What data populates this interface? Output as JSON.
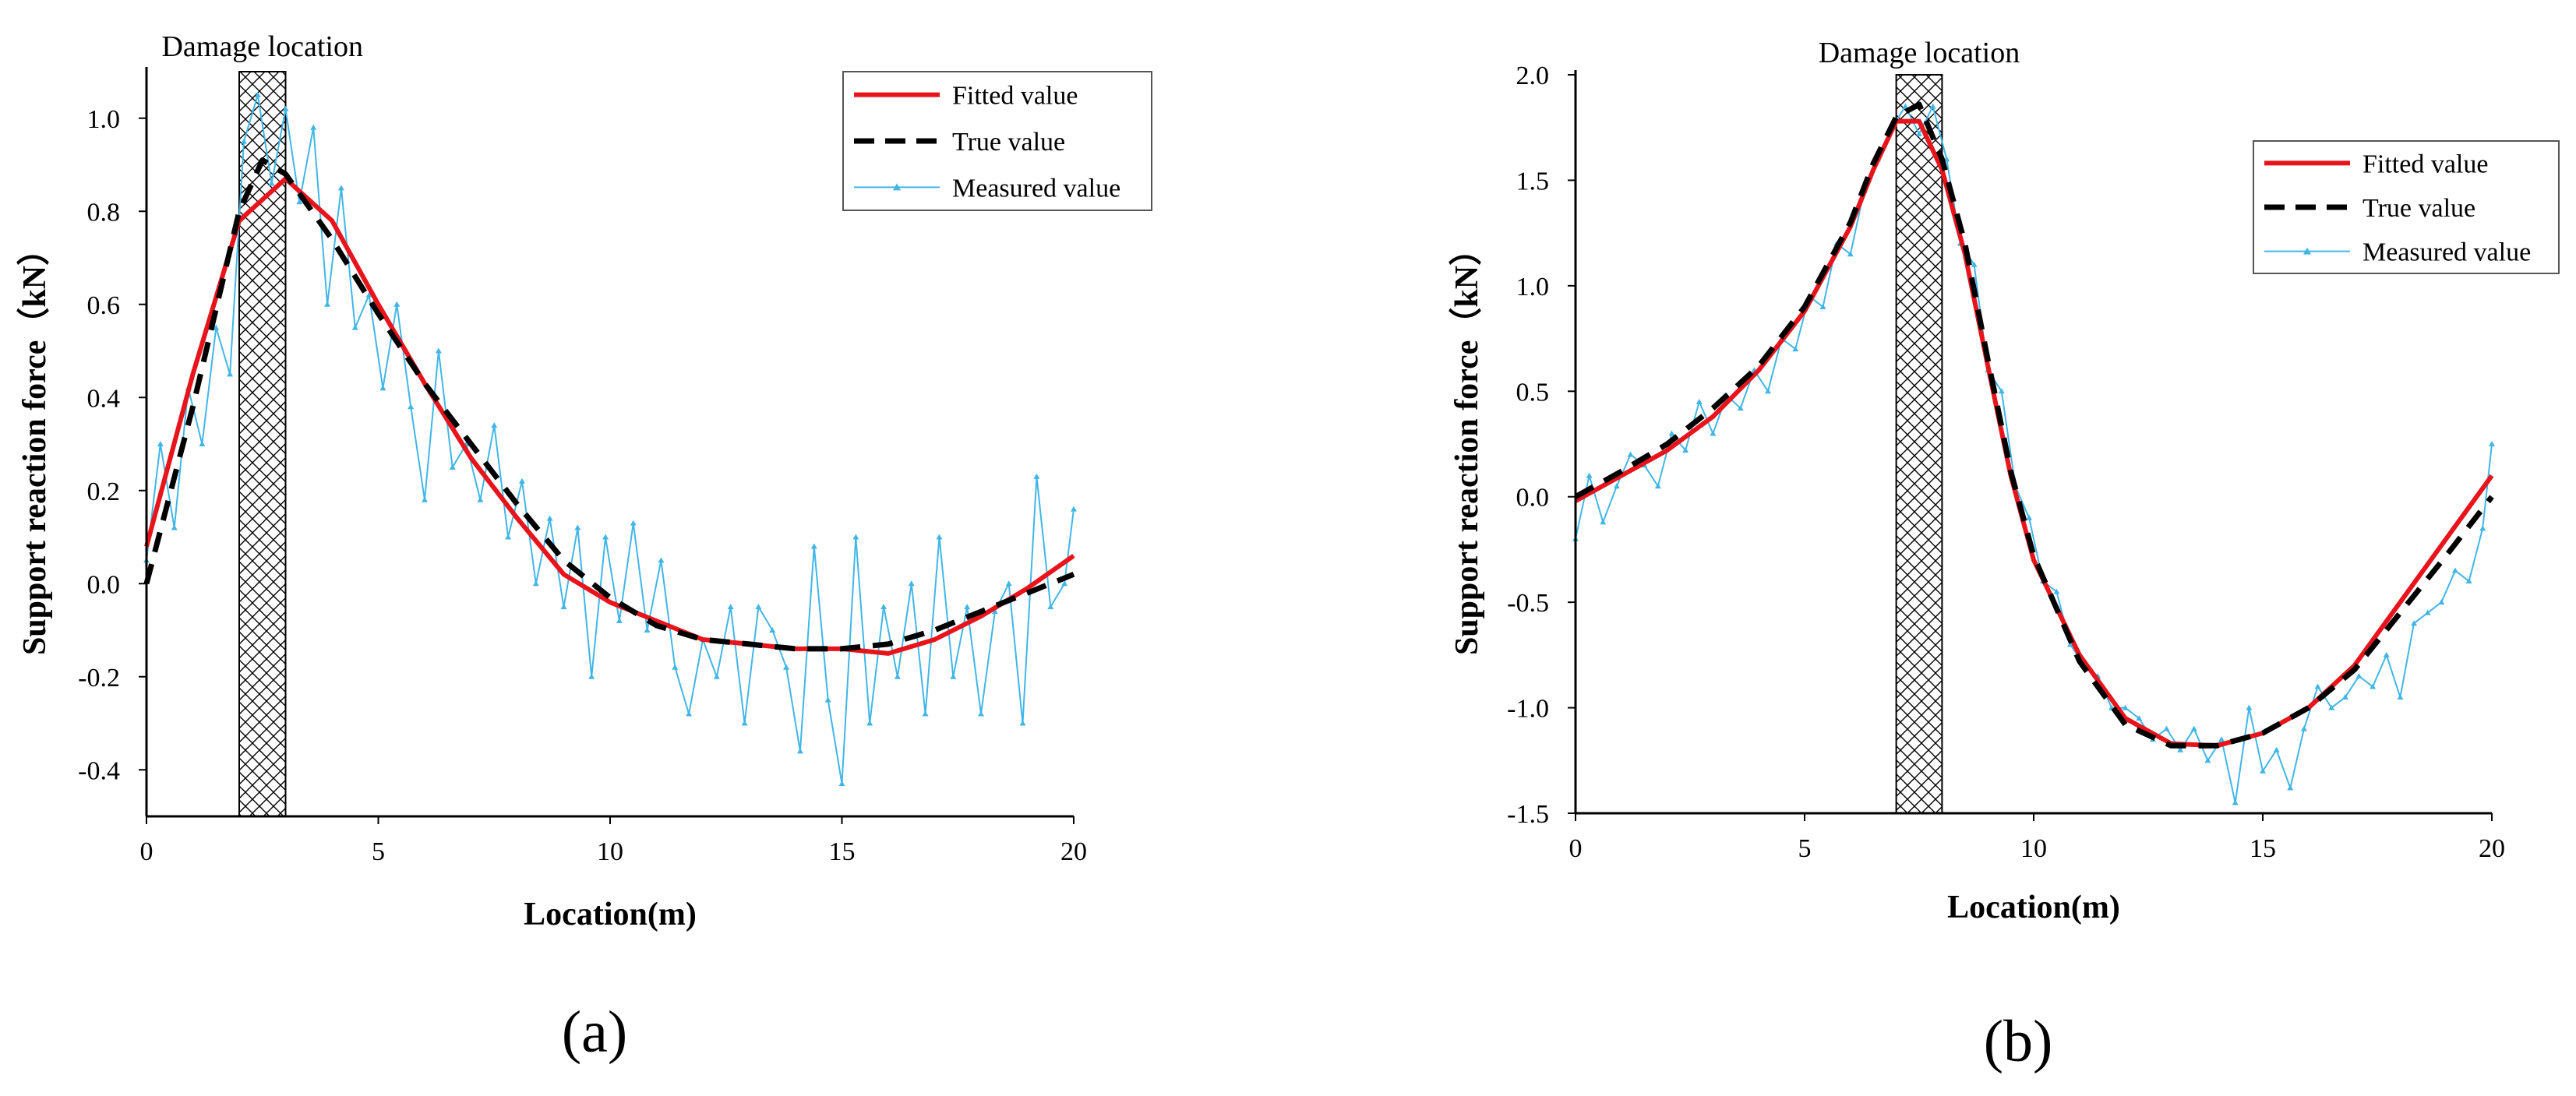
{
  "chart_data": [
    {
      "panel_label": "(a)",
      "type": "line",
      "xlabel": "Location(m)",
      "ylabel": "Support reaction force（kN）",
      "xlim": [
        0,
        20
      ],
      "ylim": [
        -0.5,
        1.1
      ],
      "xticks": [
        0,
        5,
        10,
        15,
        20
      ],
      "xtick_labels": [
        "0",
        "5",
        "10",
        "15",
        "20"
      ],
      "yticks": [
        -0.4,
        -0.2,
        0.0,
        0.2,
        0.4,
        0.6,
        0.8,
        1.0
      ],
      "ytick_labels": [
        "-0.4",
        "-0.2",
        "0.0",
        "0.2",
        "0.4",
        "0.6",
        "0.8",
        "1.0"
      ],
      "annotation": "Damage location",
      "damage_range": [
        2,
        3
      ],
      "legend_position": "top-right",
      "series": [
        {
          "name": "Fitted value",
          "style": "solid",
          "color": "#e8141b",
          "x": [
            0,
            1,
            2,
            3,
            4,
            5,
            6,
            7,
            8,
            9,
            10,
            11,
            12,
            13,
            14,
            15,
            16,
            17,
            18,
            19,
            20
          ],
          "y": [
            0.08,
            0.45,
            0.78,
            0.87,
            0.78,
            0.6,
            0.43,
            0.27,
            0.14,
            0.02,
            -0.04,
            -0.08,
            -0.12,
            -0.13,
            -0.14,
            -0.14,
            -0.15,
            -0.12,
            -0.07,
            -0.01,
            0.06
          ]
        },
        {
          "name": "True value",
          "style": "dashed",
          "color": "#000000",
          "x": [
            0,
            1,
            2,
            2.5,
            3,
            4,
            5,
            6,
            7,
            8,
            9,
            10,
            11,
            12,
            13,
            14,
            15,
            16,
            17,
            18,
            19,
            20
          ],
          "y": [
            0.0,
            0.38,
            0.8,
            0.91,
            0.88,
            0.74,
            0.58,
            0.43,
            0.3,
            0.17,
            0.05,
            -0.03,
            -0.09,
            -0.12,
            -0.13,
            -0.14,
            -0.14,
            -0.13,
            -0.1,
            -0.06,
            -0.02,
            0.02
          ]
        },
        {
          "name": "Measured value",
          "style": "marker",
          "color": "#41b6e6",
          "x": [
            0,
            0.3,
            0.6,
            0.9,
            1.2,
            1.5,
            1.8,
            2.1,
            2.4,
            2.7,
            3.0,
            3.3,
            3.6,
            3.9,
            4.2,
            4.5,
            4.8,
            5.1,
            5.4,
            5.7,
            6.0,
            6.3,
            6.6,
            6.9,
            7.2,
            7.5,
            7.8,
            8.1,
            8.4,
            8.7,
            9.0,
            9.3,
            9.6,
            9.9,
            10.2,
            10.5,
            10.8,
            11.1,
            11.4,
            11.7,
            12.0,
            12.3,
            12.6,
            12.9,
            13.2,
            13.5,
            13.8,
            14.1,
            14.4,
            14.7,
            15.0,
            15.3,
            15.6,
            15.9,
            16.2,
            16.5,
            16.8,
            17.1,
            17.4,
            17.7,
            18.0,
            18.3,
            18.6,
            18.9,
            19.2,
            19.5,
            19.8,
            20.0
          ],
          "y": [
            0.05,
            0.3,
            0.12,
            0.42,
            0.3,
            0.55,
            0.45,
            0.95,
            1.05,
            0.86,
            1.02,
            0.82,
            0.98,
            0.6,
            0.85,
            0.55,
            0.62,
            0.42,
            0.6,
            0.38,
            0.18,
            0.5,
            0.25,
            0.3,
            0.18,
            0.34,
            0.1,
            0.22,
            0.0,
            0.14,
            -0.05,
            0.12,
            -0.2,
            0.1,
            -0.08,
            0.13,
            -0.1,
            0.05,
            -0.18,
            -0.28,
            -0.12,
            -0.2,
            -0.05,
            -0.3,
            -0.05,
            -0.1,
            -0.18,
            -0.36,
            0.08,
            -0.25,
            -0.43,
            0.1,
            -0.3,
            -0.05,
            -0.2,
            0.0,
            -0.28,
            0.1,
            -0.2,
            -0.05,
            -0.28,
            -0.06,
            0.0,
            -0.3,
            0.23,
            -0.05,
            0.0,
            0.16
          ]
        }
      ]
    },
    {
      "panel_label": "(b)",
      "type": "line",
      "xlabel": "Location(m)",
      "ylabel": "Support reaction force（kN）",
      "xlim": [
        0,
        20
      ],
      "ylim": [
        -1.5,
        2.0
      ],
      "xticks": [
        0,
        5,
        10,
        15,
        20
      ],
      "xtick_labels": [
        "0",
        "5",
        "10",
        "15",
        "20"
      ],
      "yticks": [
        -1.5,
        -1.0,
        -0.5,
        0.0,
        0.5,
        1.0,
        1.5,
        2.0
      ],
      "ytick_labels": [
        "-1.5",
        "-1.0",
        "-0.5",
        "0.0",
        "0.5",
        "1.0",
        "1.5",
        "2.0"
      ],
      "annotation": "Damage location",
      "damage_range": [
        7,
        8
      ],
      "legend_position": "top-right",
      "series": [
        {
          "name": "Fitted value",
          "style": "solid",
          "color": "#e8141b",
          "x": [
            0,
            1,
            2,
            3,
            4,
            5,
            6,
            6.5,
            7,
            7.5,
            8,
            8.5,
            9,
            9.5,
            10,
            11,
            12,
            13,
            14,
            15,
            16,
            17,
            18,
            19,
            20
          ],
          "y": [
            -0.02,
            0.1,
            0.22,
            0.38,
            0.6,
            0.88,
            1.28,
            1.55,
            1.78,
            1.78,
            1.55,
            1.15,
            0.62,
            0.1,
            -0.3,
            -0.75,
            -1.05,
            -1.17,
            -1.18,
            -1.12,
            -1.0,
            -0.8,
            -0.5,
            -0.2,
            0.1
          ]
        },
        {
          "name": "True value",
          "style": "dashed",
          "color": "#000000",
          "x": [
            0,
            1,
            2,
            3,
            4,
            5,
            6,
            6.5,
            7,
            7.5,
            8,
            8.5,
            9,
            9.5,
            10,
            11,
            12,
            13,
            14,
            15,
            16,
            17,
            18,
            19,
            20
          ],
          "y": [
            0.0,
            0.12,
            0.25,
            0.42,
            0.62,
            0.9,
            1.3,
            1.58,
            1.8,
            1.86,
            1.6,
            1.2,
            0.65,
            0.12,
            -0.28,
            -0.78,
            -1.08,
            -1.18,
            -1.18,
            -1.12,
            -1.0,
            -0.82,
            -0.55,
            -0.28,
            0.0
          ]
        },
        {
          "name": "Measured value",
          "style": "marker",
          "color": "#41b6e6",
          "x": [
            0,
            0.3,
            0.6,
            0.9,
            1.2,
            1.5,
            1.8,
            2.1,
            2.4,
            2.7,
            3.0,
            3.3,
            3.6,
            3.9,
            4.2,
            4.5,
            4.8,
            5.1,
            5.4,
            5.7,
            6.0,
            6.3,
            6.6,
            6.9,
            7.2,
            7.5,
            7.8,
            8.1,
            8.4,
            8.7,
            9.0,
            9.3,
            9.6,
            9.9,
            10.2,
            10.5,
            10.8,
            11.1,
            11.4,
            11.7,
            12.0,
            12.3,
            12.6,
            12.9,
            13.2,
            13.5,
            13.8,
            14.1,
            14.4,
            14.7,
            15.0,
            15.3,
            15.6,
            15.9,
            16.2,
            16.5,
            16.8,
            17.1,
            17.4,
            17.7,
            18.0,
            18.3,
            18.6,
            18.9,
            19.2,
            19.5,
            19.8,
            20.0
          ],
          "y": [
            -0.2,
            0.1,
            -0.12,
            0.05,
            0.2,
            0.15,
            0.05,
            0.3,
            0.22,
            0.45,
            0.3,
            0.48,
            0.42,
            0.6,
            0.5,
            0.75,
            0.7,
            0.95,
            0.9,
            1.2,
            1.15,
            1.45,
            1.6,
            1.75,
            1.85,
            1.72,
            1.85,
            1.6,
            1.2,
            1.1,
            0.6,
            0.5,
            0.05,
            -0.1,
            -0.4,
            -0.45,
            -0.7,
            -0.8,
            -0.85,
            -1.0,
            -1.0,
            -1.05,
            -1.15,
            -1.1,
            -1.2,
            -1.1,
            -1.25,
            -1.15,
            -1.45,
            -1.0,
            -1.3,
            -1.2,
            -1.38,
            -1.1,
            -0.9,
            -1.0,
            -0.95,
            -0.85,
            -0.9,
            -0.75,
            -0.95,
            -0.6,
            -0.55,
            -0.5,
            -0.35,
            -0.4,
            -0.15,
            0.25
          ]
        }
      ]
    }
  ]
}
